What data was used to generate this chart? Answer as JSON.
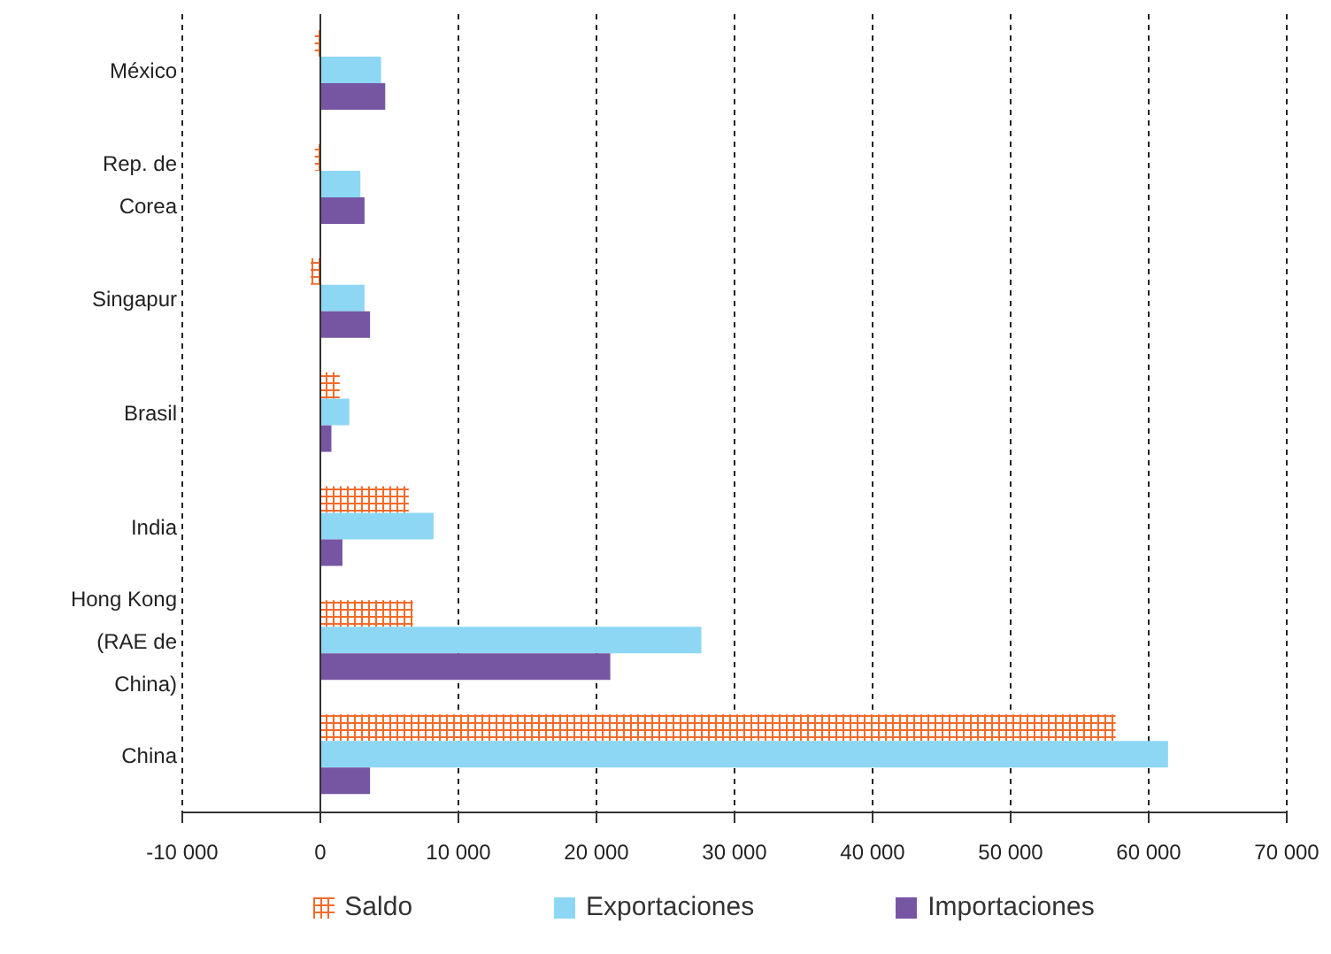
{
  "chart_data": {
    "type": "bar",
    "orientation": "horizontal",
    "categories": [
      "México",
      "Rep. de Corea",
      "Singapur",
      "Brasil",
      "India",
      "Hong Kong (RAE de China)",
      "China"
    ],
    "series": [
      {
        "name": "Saldo",
        "color": "#f26b2a",
        "values": [
          -400,
          -400,
          -700,
          1400,
          6400,
          6700,
          57600
        ]
      },
      {
        "name": "Exportaciones",
        "color": "#8dd7f5",
        "values": [
          4400,
          2900,
          3200,
          2100,
          8200,
          27600,
          61400
        ]
      },
      {
        "name": "Importaciones",
        "color": "#7656a3",
        "values": [
          4700,
          3200,
          3600,
          800,
          1600,
          21000,
          3600
        ]
      }
    ],
    "xlim": [
      -10000,
      70000
    ],
    "xticks": [
      {
        "value": -10000,
        "label": "-10 000"
      },
      {
        "value": 0,
        "label": "0"
      },
      {
        "value": 10000,
        "label": "10 000"
      },
      {
        "value": 20000,
        "label": "20 000"
      },
      {
        "value": 30000,
        "label": "30 000"
      },
      {
        "value": 40000,
        "label": "40 000"
      },
      {
        "value": 50000,
        "label": "50 000"
      },
      {
        "value": 60000,
        "label": "60 000"
      },
      {
        "value": 70000,
        "label": "70 000"
      }
    ],
    "grid": "x",
    "legend": "bottom"
  }
}
